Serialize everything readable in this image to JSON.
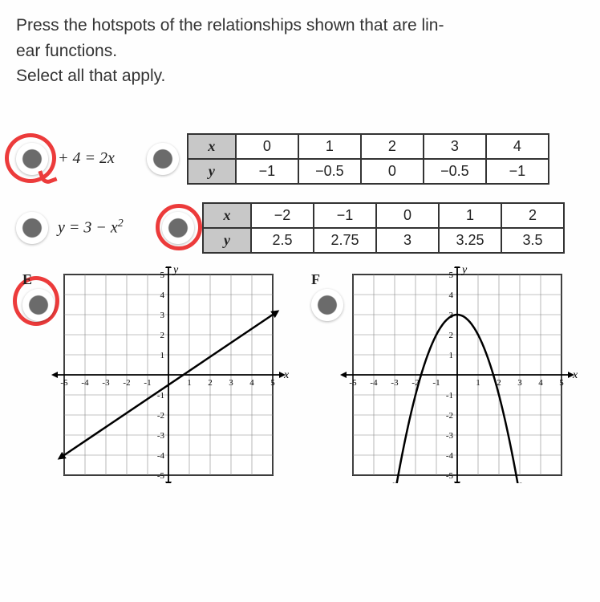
{
  "question": {
    "line1": "Press the hotspots of the relationships shown that are lin-",
    "line2": "ear functions.",
    "line3": "Select all that apply."
  },
  "options": {
    "a": {
      "equation_html": "+ 4 = 2x"
    },
    "b": {
      "table": {
        "xh": "x",
        "yh": "y",
        "x": [
          "0",
          "1",
          "2",
          "3",
          "4"
        ],
        "y": [
          "−1",
          "−0.5",
          "0",
          "−0.5",
          "−1"
        ]
      }
    },
    "c": {
      "equation_html": "y = 3 − x²"
    },
    "d": {
      "table": {
        "xh": "x",
        "yh": "y",
        "x": [
          "−2",
          "−1",
          "0",
          "1",
          "2"
        ],
        "y": [
          "2.5",
          "2.75",
          "3",
          "3.25",
          "3.5"
        ]
      }
    },
    "e": {
      "label": "E",
      "chart": {
        "type": "line",
        "xlim": [
          -5,
          5
        ],
        "ylim": [
          -5,
          5
        ],
        "xticks": [
          "-5",
          "-4",
          "-3",
          "-2",
          "",
          "1",
          "2",
          "3",
          "4",
          "5"
        ],
        "yticks": [
          "-5",
          "-4",
          "-3",
          "-2",
          "-1",
          "1",
          "2",
          "3",
          "4",
          "5"
        ],
        "x_axis_label": "x",
        "y_axis_label": "y",
        "line_points": [
          [
            -5,
            -4
          ],
          [
            5,
            3
          ]
        ],
        "line_color": "#000",
        "line_width": 2.5,
        "grid_color": "#888",
        "background_color": "#fff",
        "arrows": true
      }
    },
    "f": {
      "label": "F",
      "chart": {
        "type": "parabola",
        "xlim": [
          -5,
          5
        ],
        "ylim": [
          -5,
          5
        ],
        "xticks": [
          "-5",
          "-4",
          "-3",
          "-2",
          "-1",
          "1",
          "2",
          "3",
          "4",
          "5"
        ],
        "yticks": [
          "-5",
          "-4",
          "-3",
          "-2",
          "-1",
          "1",
          "2",
          "3",
          "4",
          "5"
        ],
        "x_axis_label": "x",
        "y_axis_label": "y",
        "vertex": [
          0,
          3
        ],
        "a": -1,
        "line_color": "#000",
        "line_width": 2.5,
        "grid_color": "#888",
        "background_color": "#fff",
        "arrows": true
      }
    }
  },
  "annotations": {
    "circled": [
      "a",
      "d",
      "e"
    ],
    "circle_color": "#ec3b3b"
  }
}
